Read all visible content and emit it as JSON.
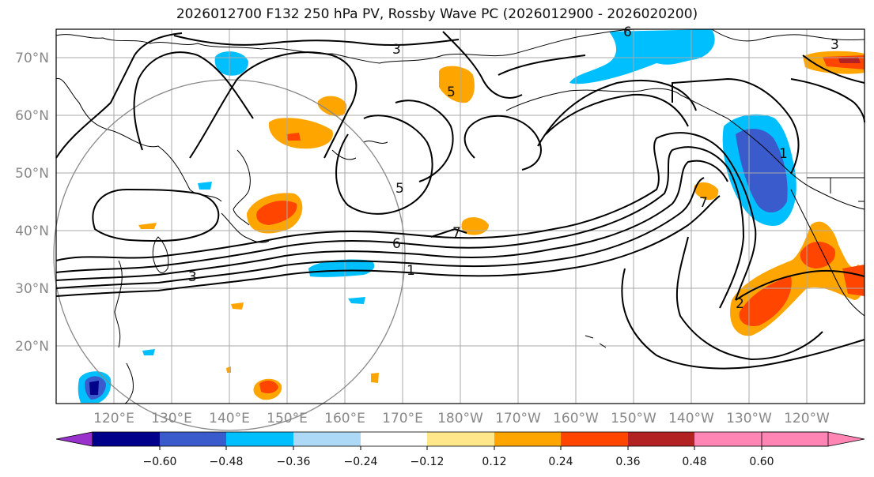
{
  "title": "2026012700 F132 250 hPa PV, Rossby Wave PC (2026012900 - 2026020200)",
  "latitudes": [
    "70°N",
    "60°N",
    "50°N",
    "40°N",
    "30°N",
    "20°N"
  ],
  "longitudes": [
    "120°E",
    "130°E",
    "140°E",
    "150°E",
    "160°E",
    "170°E",
    "180°W",
    "170°W",
    "160°W",
    "150°W",
    "140°W",
    "130°W",
    "120°W"
  ],
  "contour_labels": [
    "3",
    "6",
    "3",
    "5",
    "6",
    "1",
    "7",
    "7",
    "1",
    "2",
    "3",
    "5"
  ],
  "colorbar": {
    "ticks": [
      "−0.60",
      "−0.48",
      "−0.36",
      "−0.24",
      "−0.12",
      "0.12",
      "0.24",
      "0.36",
      "0.48",
      "0.60"
    ],
    "colors": [
      "#9932cc",
      "#00008b",
      "#3a5bcc",
      "#00bfff",
      "#add8f6",
      "#ffffff",
      "#ffe78a",
      "#ffa500",
      "#ff4500",
      "#b22222",
      "#ff85b5"
    ]
  }
}
